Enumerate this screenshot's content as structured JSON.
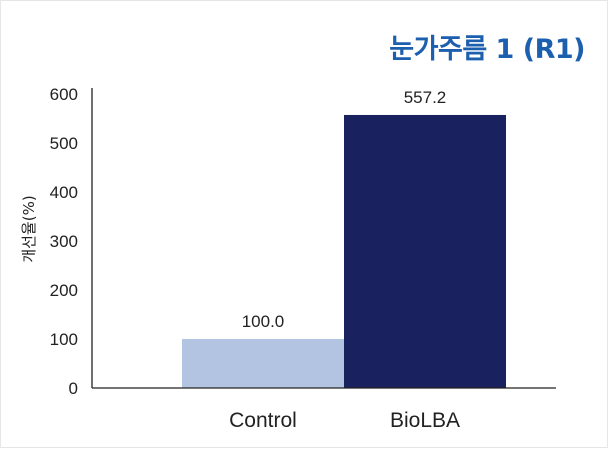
{
  "chart_data": {
    "type": "bar",
    "title": "눈가주름 1 (R1)",
    "ylabel": "개선율(%)",
    "xlabel": "",
    "categories": [
      "Control",
      "BioLBA"
    ],
    "values": [
      100.0,
      557.2
    ],
    "value_labels": [
      "100.0",
      "557.2"
    ],
    "ylim": [
      0,
      600
    ],
    "yticks": [
      0,
      100,
      200,
      300,
      400,
      500,
      600
    ],
    "grid": false,
    "legend": "none",
    "colors": [
      "#b3c4e2",
      "#19215f"
    ],
    "title_color": "#1b5fae"
  }
}
